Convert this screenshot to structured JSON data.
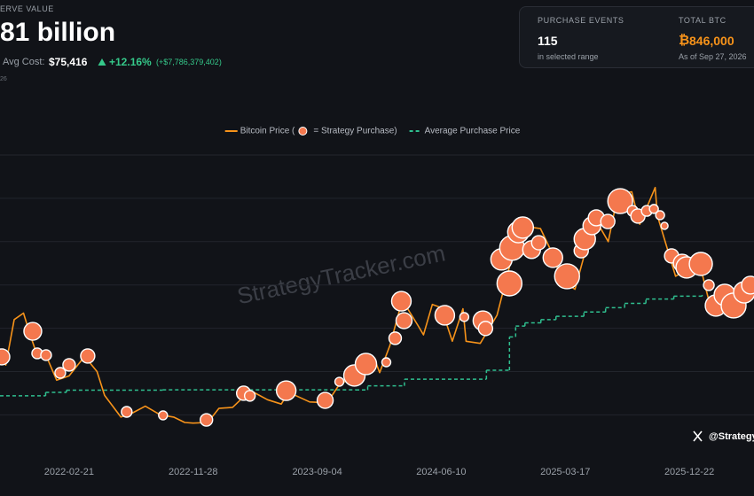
{
  "header": {
    "reserve_label": "ERVE VALUE",
    "reserve_value": "81 billion",
    "avg_cost_label": "Avg Cost:",
    "avg_cost": "$75,416",
    "change_pct": "+12.16%",
    "change_abs": "(+$7,786,379,402)",
    "note": "26"
  },
  "stats": [
    {
      "label": "PURCHASE EVENTS",
      "value": "115",
      "sub": "in selected range"
    },
    {
      "label": "TOTAL BTC",
      "symbol": "₿",
      "value": "846,000",
      "sub": "As of Sep 27, 2026"
    }
  ],
  "credit": "@Strategy",
  "chart_data": {
    "type": "line",
    "watermark": "StrategyTracker.com",
    "grid": true,
    "legend": "top",
    "xlim": [
      "2021-09-18",
      "2026-05-17"
    ],
    "xticks": [
      "2022-02-21",
      "2022-11-28",
      "2023-09-04",
      "2024-06-10",
      "2025-03-17",
      "2025-12-22"
    ],
    "ylim": [
      3000,
      140000
    ],
    "yticks": [
      20000,
      40000,
      60000,
      80000,
      100000,
      120000,
      140000
    ],
    "series": [
      {
        "name": "Bitcoin Price (",
        "color": "#f7931a",
        "x": [
          "2021-09-18",
          "2021-10-01",
          "2021-10-20",
          "2021-11-10",
          "2021-11-25",
          "2021-12-10",
          "2022-01-01",
          "2022-01-24",
          "2022-02-21",
          "2022-03-28",
          "2022-04-25",
          "2022-05-12",
          "2022-06-18",
          "2022-07-15",
          "2022-08-12",
          "2022-09-15",
          "2022-10-15",
          "2022-11-09",
          "2022-11-28",
          "2022-12-31",
          "2023-01-25",
          "2023-02-25",
          "2023-03-20",
          "2023-04-14",
          "2023-05-15",
          "2023-06-15",
          "2023-07-01",
          "2023-08-18",
          "2023-09-04",
          "2023-10-01",
          "2023-10-24",
          "2023-11-20",
          "2023-12-08",
          "2024-01-11",
          "2024-01-23",
          "2024-02-15",
          "2024-03-14",
          "2024-04-18",
          "2024-05-01",
          "2024-05-21",
          "2024-06-10",
          "2024-07-05",
          "2024-07-29",
          "2024-08-05",
          "2024-09-06",
          "2024-10-14",
          "2024-11-13",
          "2024-12-17",
          "2025-01-20",
          "2025-02-10",
          "2025-03-10",
          "2025-04-08",
          "2025-05-22",
          "2025-06-22",
          "2025-07-14",
          "2025-08-14",
          "2025-09-01",
          "2025-10-06",
          "2025-10-11",
          "2025-11-21",
          "2025-12-22",
          "2026-01-14",
          "2026-02-05",
          "2026-03-15",
          "2026-04-20",
          "2026-05-17"
        ],
        "values": [
          47000,
          43000,
          64000,
          67000,
          57000,
          48000,
          47000,
          36000,
          38000,
          47000,
          40000,
          29000,
          19000,
          21000,
          24000,
          20000,
          19000,
          16500,
          16200,
          16500,
          23000,
          23500,
          28000,
          30400,
          27000,
          25000,
          30500,
          26000,
          25800,
          27000,
          34000,
          37000,
          43500,
          46000,
          39500,
          52000,
          73000,
          61500,
          57000,
          71000,
          69500,
          54000,
          69000,
          54000,
          53000,
          66000,
          90000,
          107000,
          106000,
          97000,
          82000,
          78000,
          111000,
          100000,
          122000,
          123000,
          108000,
          125000,
          112000,
          84000,
          88000,
          90000,
          72000,
          74000,
          76000,
          80000
        ]
      },
      {
        "name": "= Strategy Purchase)",
        "type": "bubble",
        "color": "#f4784e",
        "x": [
          "2021-09-22",
          "2021-12-01",
          "2021-12-11",
          "2021-12-31",
          "2022-02-01",
          "2022-02-21",
          "2022-04-04",
          "2022-07-01",
          "2022-09-21",
          "2022-12-28",
          "2023-03-22",
          "2023-04-05",
          "2023-06-26",
          "2023-09-22",
          "2023-10-24",
          "2023-11-27",
          "2023-12-23",
          "2024-02-07",
          "2024-02-27",
          "2024-03-12",
          "2024-03-18",
          "2024-06-18",
          "2024-08-01",
          "2024-09-12",
          "2024-09-18",
          "2024-10-24",
          "2024-11-11",
          "2024-11-17",
          "2024-12-01",
          "2024-12-11",
          "2024-12-31",
          "2025-01-16",
          "2025-02-17",
          "2025-03-21",
          "2025-04-22",
          "2025-04-30",
          "2025-05-16",
          "2025-05-26",
          "2025-06-21",
          "2025-07-19",
          "2025-08-16",
          "2025-08-28",
          "2025-09-17",
          "2025-10-03",
          "2025-10-17",
          "2025-10-27",
          "2025-11-12",
          "2025-12-06",
          "2025-12-16",
          "2026-01-17",
          "2026-02-04",
          "2026-02-20",
          "2026-03-12",
          "2026-04-01",
          "2026-04-25",
          "2026-05-09"
        ],
        "values": [
          46800,
          58600,
          48400,
          47600,
          39400,
          43100,
          47200,
          21400,
          19800,
          17700,
          30000,
          28800,
          31200,
          26700,
          35300,
          38200,
          43500,
          44300,
          55400,
          72500,
          63500,
          66000,
          65200,
          63500,
          59900,
          91800,
          80700,
          97100,
          104400,
          106500,
          96300,
          99500,
          92600,
          84000,
          95800,
          101200,
          107300,
          111000,
          109300,
          118700,
          114200,
          111800,
          114200,
          115100,
          112200,
          107300,
          93400,
          90100,
          88100,
          89700,
          79900,
          70500,
          75400,
          70500,
          76600,
          79900
        ],
        "sizes": [
          810,
          1000,
          360,
          360,
          360,
          490,
          640,
          360,
          250,
          490,
          640,
          360,
          1210,
          810,
          250,
          1440,
          1440,
          250,
          490,
          1210,
          810,
          1210,
          250,
          1210,
          640,
          1440,
          1960,
          1960,
          1440,
          1440,
          1000,
          640,
          1210,
          1960,
          640,
          1440,
          1000,
          810,
          640,
          1960,
          360,
          640,
          360,
          250,
          250,
          160,
          640,
          1000,
          1440,
          1690,
          360,
          1440,
          1440,
          1960,
          1440,
          1000
        ]
      },
      {
        "name": "Average Purchase Price",
        "type": "step",
        "color": "#2fbf8f",
        "dash": true,
        "x": [
          "2021-09-18",
          "2021-12-30",
          "2022-02-15",
          "2022-09-20",
          "2023-11-30",
          "2023-12-27",
          "2024-03-19",
          "2024-09-20",
          "2024-11-11",
          "2024-11-25",
          "2024-12-16",
          "2025-01-21",
          "2025-02-24",
          "2025-04-28",
          "2025-06-16",
          "2025-07-29",
          "2025-09-15",
          "2025-11-17",
          "2026-01-20"
        ],
        "values": [
          28800,
          30400,
          31400,
          31600,
          31500,
          33400,
          36500,
          40600,
          56000,
          61000,
          62500,
          64000,
          65500,
          67500,
          69500,
          71500,
          73500,
          74800,
          75416
        ]
      }
    ]
  }
}
